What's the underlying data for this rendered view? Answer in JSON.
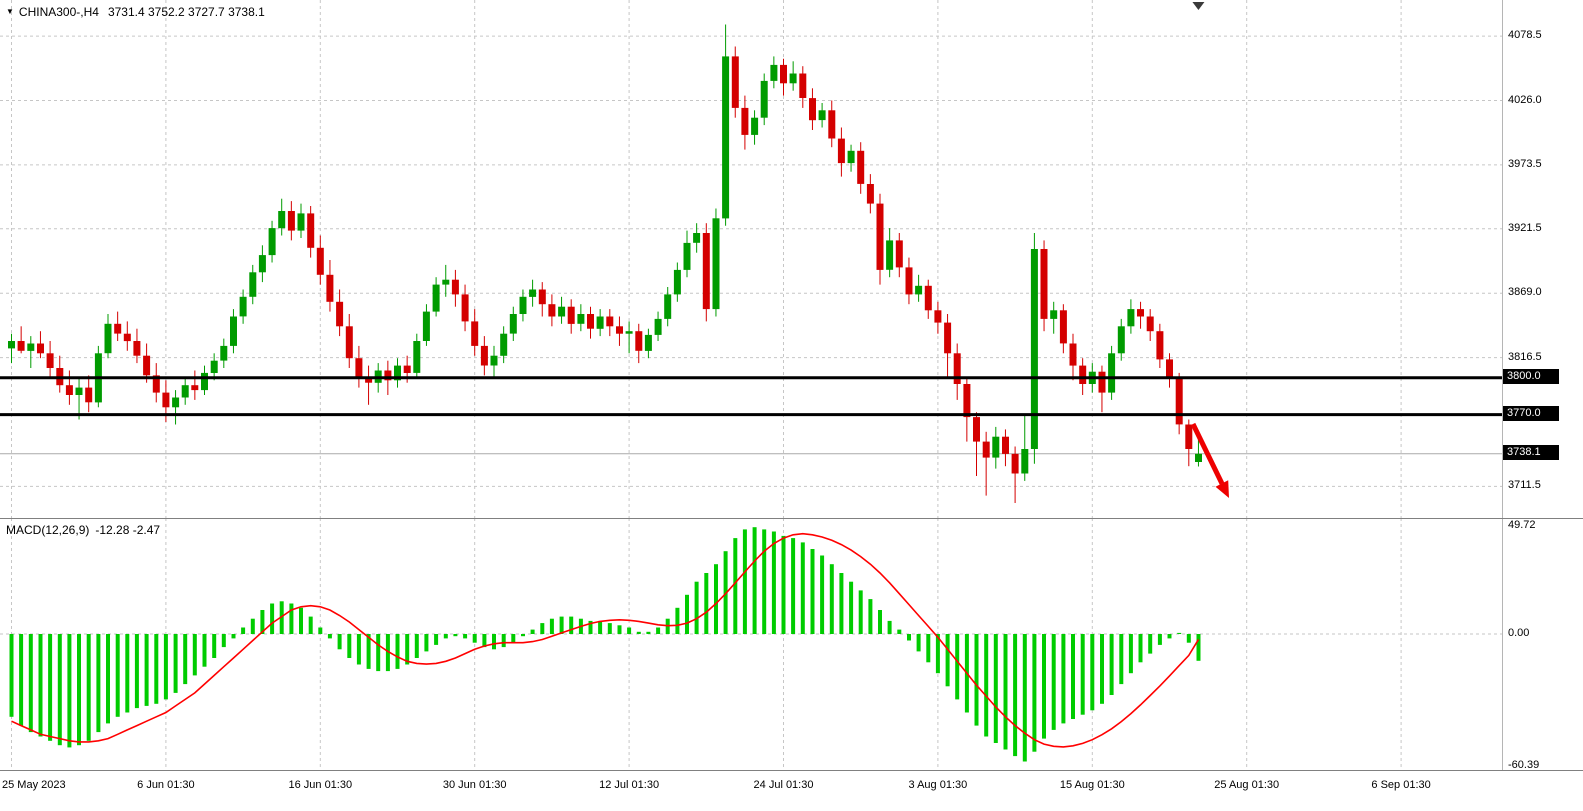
{
  "header": {
    "collapse_icon": "▼",
    "symbol": "CHINA300-,H4",
    "ohlc_text": "3731.4 3752.2 3727.7 3738.1"
  },
  "macd_panel": {
    "label": "MACD(12,26,9)",
    "values_text": "-12.28 -2.47"
  },
  "colors": {
    "up": "#009b00",
    "down": "#d40000",
    "histogram": "#00cc00",
    "signal": "#ff0000",
    "grid": "#c6c6c6",
    "level": "#000000",
    "tag_bg": "#000000",
    "tag_text": "#ffffff",
    "arrow": "#ee0000",
    "current_price_line": "#aaaaaa"
  },
  "chart_data": [
    {
      "type": "candlestick",
      "title": "CHINA300-,H4",
      "symbol": "CHINA300-",
      "timeframe": "H4",
      "current_bar": {
        "open": 3731.4,
        "high": 3752.2,
        "low": 3727.7,
        "close": 3738.1
      },
      "x_tick_labels": [
        "25 May 2023",
        "6 Jun 01:30",
        "16 Jun 01:30",
        "30 Jun 01:30",
        "12 Jul 01:30",
        "24 Jul 01:30",
        "3 Aug 01:30",
        "15 Aug 01:30",
        "25 Aug 01:30",
        "6 Sep 01:30"
      ],
      "bars_per_x_tick": 16,
      "y_grid_prices": [
        4078.5,
        4026.0,
        3973.5,
        3921.5,
        3869.0,
        3816.5,
        3711.5
      ],
      "horizontal_levels": [
        3800.0,
        3770.0
      ],
      "current_price": 3738.1,
      "annotation": "red-down-right-trend-arrow",
      "candles_ohlc": [
        [
          3824,
          3836,
          3812,
          3830
        ],
        [
          3830,
          3842,
          3820,
          3822
        ],
        [
          3822,
          3834,
          3808,
          3828
        ],
        [
          3828,
          3838,
          3816,
          3820
        ],
        [
          3820,
          3830,
          3800,
          3808
        ],
        [
          3808,
          3818,
          3788,
          3794
        ],
        [
          3794,
          3806,
          3778,
          3786
        ],
        [
          3786,
          3800,
          3766,
          3792
        ],
        [
          3792,
          3802,
          3772,
          3780
        ],
        [
          3780,
          3826,
          3776,
          3820
        ],
        [
          3820,
          3852,
          3816,
          3844
        ],
        [
          3844,
          3854,
          3830,
          3836
        ],
        [
          3836,
          3846,
          3822,
          3830
        ],
        [
          3830,
          3840,
          3812,
          3818
        ],
        [
          3818,
          3828,
          3796,
          3802
        ],
        [
          3802,
          3812,
          3780,
          3788
        ],
        [
          3788,
          3798,
          3764,
          3776
        ],
        [
          3776,
          3790,
          3762,
          3784
        ],
        [
          3784,
          3800,
          3778,
          3794
        ],
        [
          3794,
          3806,
          3782,
          3790
        ],
        [
          3790,
          3810,
          3786,
          3804
        ],
        [
          3804,
          3820,
          3798,
          3814
        ],
        [
          3814,
          3832,
          3808,
          3826
        ],
        [
          3826,
          3856,
          3820,
          3850
        ],
        [
          3850,
          3872,
          3844,
          3866
        ],
        [
          3866,
          3892,
          3860,
          3886
        ],
        [
          3886,
          3908,
          3878,
          3900
        ],
        [
          3900,
          3928,
          3894,
          3922
        ],
        [
          3922,
          3946,
          3916,
          3936
        ],
        [
          3936,
          3944,
          3912,
          3920
        ],
        [
          3920,
          3942,
          3914,
          3934
        ],
        [
          3934,
          3940,
          3898,
          3906
        ],
        [
          3906,
          3916,
          3876,
          3884
        ],
        [
          3884,
          3896,
          3854,
          3862
        ],
        [
          3862,
          3872,
          3834,
          3842
        ],
        [
          3842,
          3852,
          3808,
          3816
        ],
        [
          3816,
          3826,
          3792,
          3800
        ],
        [
          3800,
          3810,
          3778,
          3796
        ],
        [
          3796,
          3812,
          3788,
          3806
        ],
        [
          3806,
          3814,
          3786,
          3798
        ],
        [
          3798,
          3816,
          3792,
          3810
        ],
        [
          3810,
          3818,
          3796,
          3804
        ],
        [
          3804,
          3836,
          3800,
          3830
        ],
        [
          3830,
          3860,
          3826,
          3854
        ],
        [
          3854,
          3882,
          3850,
          3876
        ],
        [
          3876,
          3892,
          3866,
          3880
        ],
        [
          3880,
          3888,
          3858,
          3868
        ],
        [
          3868,
          3876,
          3838,
          3846
        ],
        [
          3846,
          3856,
          3818,
          3826
        ],
        [
          3826,
          3834,
          3802,
          3810
        ],
        [
          3810,
          3826,
          3800,
          3818
        ],
        [
          3818,
          3842,
          3812,
          3836
        ],
        [
          3836,
          3858,
          3830,
          3852
        ],
        [
          3852,
          3872,
          3846,
          3866
        ],
        [
          3866,
          3880,
          3858,
          3872
        ],
        [
          3872,
          3878,
          3850,
          3860
        ],
        [
          3860,
          3868,
          3842,
          3850
        ],
        [
          3850,
          3866,
          3844,
          3858
        ],
        [
          3858,
          3864,
          3836,
          3844
        ],
        [
          3844,
          3860,
          3838,
          3852
        ],
        [
          3852,
          3858,
          3832,
          3840
        ],
        [
          3840,
          3856,
          3834,
          3850
        ],
        [
          3850,
          3856,
          3834,
          3842
        ],
        [
          3842,
          3850,
          3826,
          3836
        ],
        [
          3836,
          3846,
          3820,
          3838
        ],
        [
          3838,
          3844,
          3812,
          3822
        ],
        [
          3822,
          3840,
          3816,
          3835
        ],
        [
          3835,
          3854,
          3830,
          3848
        ],
        [
          3848,
          3874,
          3842,
          3868
        ],
        [
          3868,
          3894,
          3862,
          3888
        ],
        [
          3888,
          3920,
          3882,
          3910
        ],
        [
          3910,
          3926,
          3902,
          3918
        ],
        [
          3918,
          3926,
          3846,
          3856
        ],
        [
          3856,
          3938,
          3850,
          3930
        ],
        [
          3930,
          4088,
          3924,
          4062
        ],
        [
          4062,
          4070,
          4012,
          4020
        ],
        [
          4020,
          4030,
          3986,
          3998
        ],
        [
          3998,
          4018,
          3990,
          4012
        ],
        [
          4012,
          4048,
          4006,
          4042
        ],
        [
          4042,
          4062,
          4036,
          4055
        ],
        [
          4055,
          4060,
          4030,
          4040
        ],
        [
          4040,
          4058,
          4034,
          4048
        ],
        [
          4048,
          4054,
          4020,
          4028
        ],
        [
          4028,
          4036,
          4002,
          4010
        ],
        [
          4010,
          4024,
          4004,
          4018
        ],
        [
          4018,
          4026,
          3988,
          3995
        ],
        [
          3995,
          4004,
          3964,
          3975
        ],
        [
          3975,
          3990,
          3968,
          3985
        ],
        [
          3985,
          3992,
          3950,
          3958
        ],
        [
          3958,
          3966,
          3934,
          3942
        ],
        [
          3942,
          3950,
          3876,
          3888
        ],
        [
          3888,
          3922,
          3882,
          3912
        ],
        [
          3912,
          3918,
          3882,
          3890
        ],
        [
          3890,
          3898,
          3860,
          3868
        ],
        [
          3868,
          3884,
          3862,
          3875
        ],
        [
          3875,
          3880,
          3848,
          3855
        ],
        [
          3855,
          3862,
          3836,
          3845
        ],
        [
          3845,
          3852,
          3800,
          3820
        ],
        [
          3820,
          3828,
          3782,
          3795
        ],
        [
          3795,
          3800,
          3748,
          3768
        ],
        [
          3768,
          3772,
          3720,
          3748
        ],
        [
          3748,
          3756,
          3704,
          3735
        ],
        [
          3735,
          3760,
          3726,
          3752
        ],
        [
          3752,
          3758,
          3728,
          3738
        ],
        [
          3738,
          3744,
          3698,
          3722
        ],
        [
          3722,
          3770,
          3716,
          3742
        ],
        [
          3742,
          3918,
          3730,
          3905
        ],
        [
          3905,
          3912,
          3838,
          3848
        ],
        [
          3848,
          3862,
          3836,
          3855
        ],
        [
          3855,
          3860,
          3820,
          3828
        ],
        [
          3828,
          3836,
          3798,
          3810
        ],
        [
          3810,
          3816,
          3786,
          3795
        ],
        [
          3795,
          3812,
          3788,
          3805
        ],
        [
          3805,
          3810,
          3772,
          3788
        ],
        [
          3788,
          3826,
          3782,
          3820
        ],
        [
          3820,
          3848,
          3814,
          3842
        ],
        [
          3842,
          3864,
          3836,
          3856
        ],
        [
          3856,
          3862,
          3840,
          3850
        ],
        [
          3850,
          3856,
          3830,
          3838
        ],
        [
          3838,
          3844,
          3808,
          3815
        ],
        [
          3815,
          3820,
          3792,
          3800
        ],
        [
          3800,
          3804,
          3754,
          3762
        ],
        [
          3762,
          3766,
          3728,
          3742
        ],
        [
          3731.4,
          3752.2,
          3727.7,
          3738.1
        ]
      ]
    },
    {
      "type": "macd",
      "title": "MACD(12,26,9)",
      "macd_value": -12.28,
      "signal_value": -2.47,
      "y_ticks": [
        49.72,
        0.0,
        -60.39
      ],
      "histogram": [
        -38,
        -42,
        -45,
        -47,
        -49,
        -51,
        -52,
        -51,
        -49,
        -45,
        -41,
        -38,
        -36,
        -34,
        -33,
        -32,
        -30,
        -27,
        -23,
        -19,
        -15,
        -11,
        -6,
        -2,
        3,
        7,
        11,
        14,
        15,
        14,
        12,
        8,
        3,
        -2,
        -7,
        -11,
        -14,
        -16,
        -17,
        -17,
        -16,
        -14,
        -11,
        -8,
        -5,
        -2,
        -1,
        -2,
        -4,
        -6,
        -7,
        -6,
        -4,
        -1,
        2,
        5,
        7,
        8,
        8,
        7,
        6,
        6,
        5,
        4,
        3,
        1,
        1,
        3,
        7,
        12,
        18,
        24,
        28,
        32,
        38,
        44,
        48,
        49,
        48,
        47,
        45,
        44,
        42,
        39,
        36,
        32,
        28,
        24,
        20,
        16,
        11,
        6,
        2,
        -3,
        -8,
        -13,
        -18,
        -24,
        -30,
        -36,
        -42,
        -47,
        -50,
        -53,
        -56,
        -58.5,
        -54,
        -48,
        -44,
        -41,
        -39,
        -37,
        -35,
        -32,
        -28,
        -23,
        -18,
        -13,
        -9,
        -5,
        -2,
        0.5,
        -4,
        -12.28
      ],
      "signal": [
        -40,
        -42,
        -44,
        -46,
        -47,
        -48,
        -49,
        -49.5,
        -49.5,
        -49,
        -48,
        -46,
        -44,
        -42,
        -40,
        -38,
        -36,
        -33,
        -30,
        -27,
        -23,
        -19,
        -15,
        -11,
        -7,
        -3,
        1,
        5,
        8,
        11,
        12.5,
        13,
        12.5,
        11,
        8.5,
        5.5,
        2,
        -1.5,
        -5,
        -8,
        -10.5,
        -12.5,
        -13.5,
        -13.8,
        -13.5,
        -12.5,
        -11,
        -9,
        -7,
        -5.5,
        -4.5,
        -4,
        -4,
        -4,
        -3.5,
        -2.5,
        -1,
        0.5,
        2,
        3.5,
        4.8,
        5.8,
        6.3,
        6.5,
        6.3,
        5.8,
        5,
        4.2,
        3.8,
        4,
        5,
        7,
        10,
        14,
        18.5,
        23.5,
        28.5,
        33.5,
        38,
        41.5,
        44,
        45.5,
        46,
        45.5,
        44.5,
        43,
        41,
        38.5,
        35.5,
        32,
        28,
        23.5,
        18.5,
        13.5,
        8.5,
        3.5,
        -1.5,
        -7,
        -12.5,
        -18,
        -23.5,
        -28.5,
        -33.5,
        -38,
        -42,
        -45.5,
        -48.5,
        -50.5,
        -51.5,
        -51.8,
        -51.3,
        -50.2,
        -48.5,
        -46.2,
        -43.5,
        -40.2,
        -36.5,
        -32.5,
        -28.2,
        -23.8,
        -19.2,
        -14.5,
        -9.8,
        -2.47
      ]
    }
  ]
}
